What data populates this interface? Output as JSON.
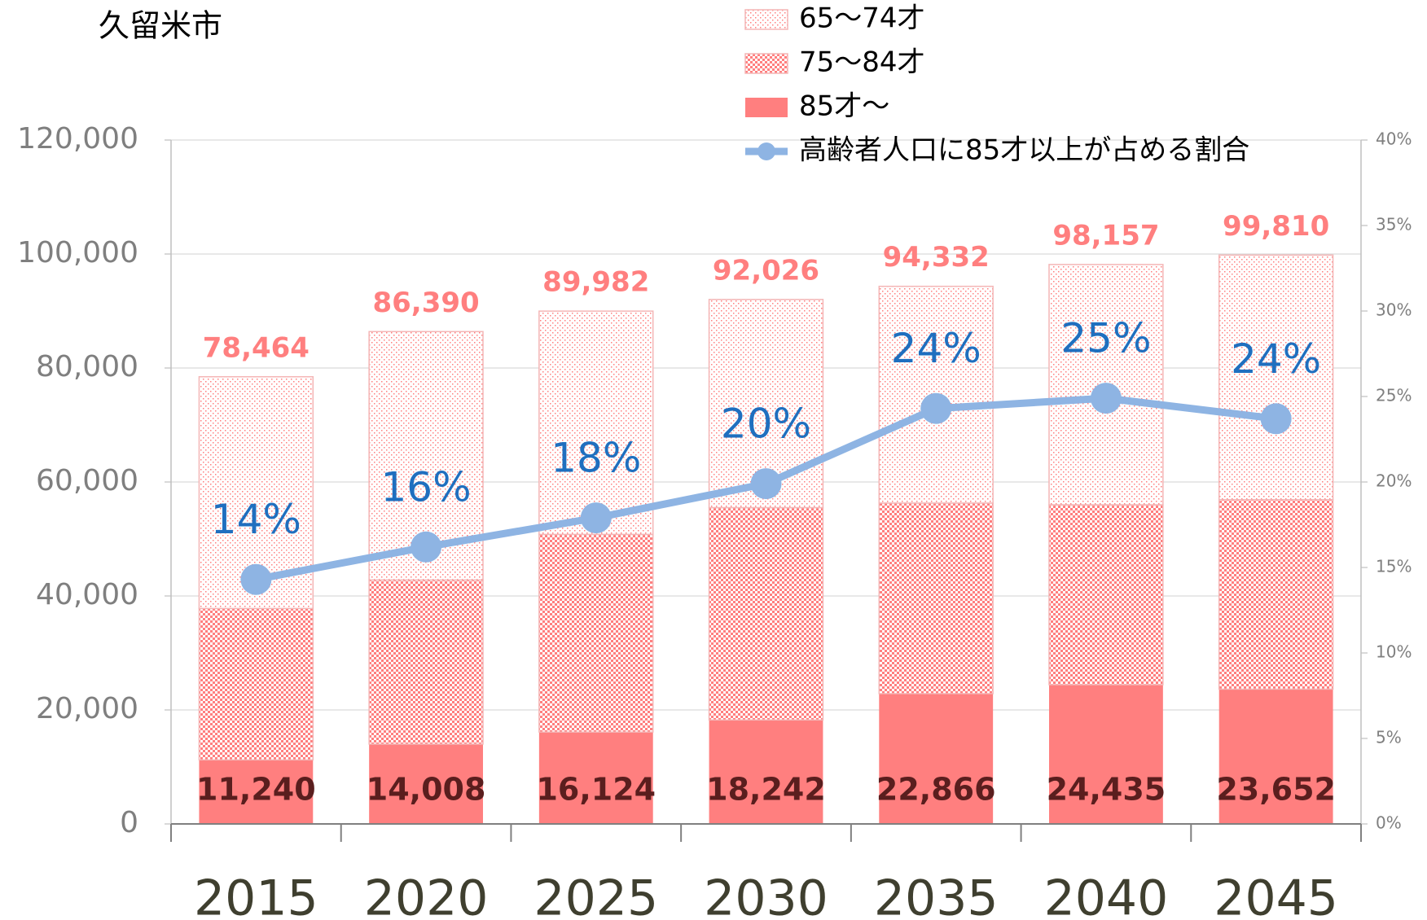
{
  "chart_data": {
    "type": "bar",
    "title": "久留米市",
    "categories": [
      "2015",
      "2020",
      "2025",
      "2030",
      "2035",
      "2040",
      "2045"
    ],
    "series": [
      {
        "name": "85才～",
        "color": "#ff7f7f",
        "pattern": "solid",
        "values": [
          11240,
          14008,
          16124,
          18242,
          22866,
          24435,
          23652
        ],
        "value_labels": [
          "11,240",
          "14,008",
          "16,124",
          "18,242",
          "22,866",
          "24,435",
          "23,652"
        ]
      },
      {
        "name": "75～84才",
        "color": "#ff7f7f",
        "pattern": "checker",
        "values": [
          26560,
          28792,
          34676,
          37258,
          33434,
          31565,
          33248
        ]
      },
      {
        "name": "65～74才",
        "color": "#ff7f7f",
        "pattern": "dots",
        "values": [
          40664,
          43590,
          39182,
          36526,
          38032,
          42157,
          42910
        ]
      },
      {
        "name": "高齢者人口に85才以上が占める割合",
        "color": "#8eb4e3",
        "type": "line",
        "axis": "y2",
        "values": [
          14.3,
          16.2,
          17.9,
          19.9,
          24.3,
          24.9,
          23.7
        ],
        "value_labels": [
          "14%",
          "16%",
          "18%",
          "20%",
          "24%",
          "25%",
          "24%"
        ]
      }
    ],
    "totals": [
      78464,
      86390,
      89982,
      92026,
      94332,
      98157,
      99810
    ],
    "total_labels": [
      "78,464",
      "86,390",
      "89,982",
      "92,026",
      "94,332",
      "98,157",
      "99,810"
    ],
    "ylim": [
      0,
      120000
    ],
    "yticks": [
      {
        "value": 0,
        "label": "0"
      },
      {
        "value": 20000,
        "label": "20,000"
      },
      {
        "value": 40000,
        "label": "40,000"
      },
      {
        "value": 60000,
        "label": "60,000"
      },
      {
        "value": 80000,
        "label": "80,000"
      },
      {
        "value": 100000,
        "label": "100,000"
      },
      {
        "value": 120000,
        "label": "120,000"
      }
    ],
    "y2lim": [
      0,
      40
    ],
    "y2ticks": [
      {
        "value": 0,
        "label": "0%"
      },
      {
        "value": 5,
        "label": "5%"
      },
      {
        "value": 10,
        "label": "10%"
      },
      {
        "value": 15,
        "label": "15%"
      },
      {
        "value": 20,
        "label": "20%"
      },
      {
        "value": 25,
        "label": "25%"
      },
      {
        "value": 30,
        "label": "30%"
      },
      {
        "value": 35,
        "label": "35%"
      },
      {
        "value": 40,
        "label": "40%"
      }
    ],
    "grid": true
  }
}
